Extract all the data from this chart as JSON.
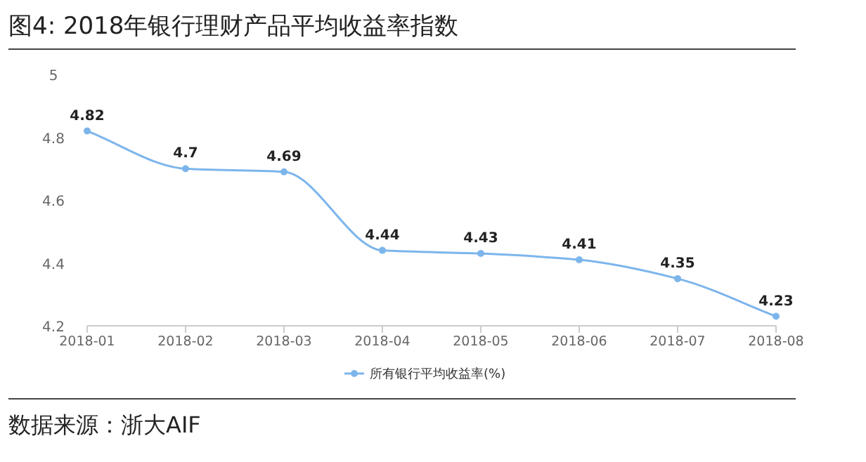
{
  "chart_data": {
    "type": "line",
    "title": "图4: 2018年银行理财产品平均收益率指数",
    "categories": [
      "2018-01",
      "2018-02",
      "2018-03",
      "2018-04",
      "2018-05",
      "2018-06",
      "2018-07",
      "2018-08"
    ],
    "series": [
      {
        "name": "所有银行平均收益率(%)",
        "color": "#7cb5ec",
        "values": [
          4.82,
          4.7,
          4.69,
          4.44,
          4.43,
          4.41,
          4.35,
          4.23
        ]
      }
    ],
    "ylim": [
      4.2,
      5
    ],
    "yticks": [
      4.2,
      4.4,
      4.6,
      4.8,
      5
    ],
    "data_labels": true,
    "legend": "bottom",
    "marker": "circle",
    "annotations": [
      "数据来源：浙大AIF"
    ]
  }
}
